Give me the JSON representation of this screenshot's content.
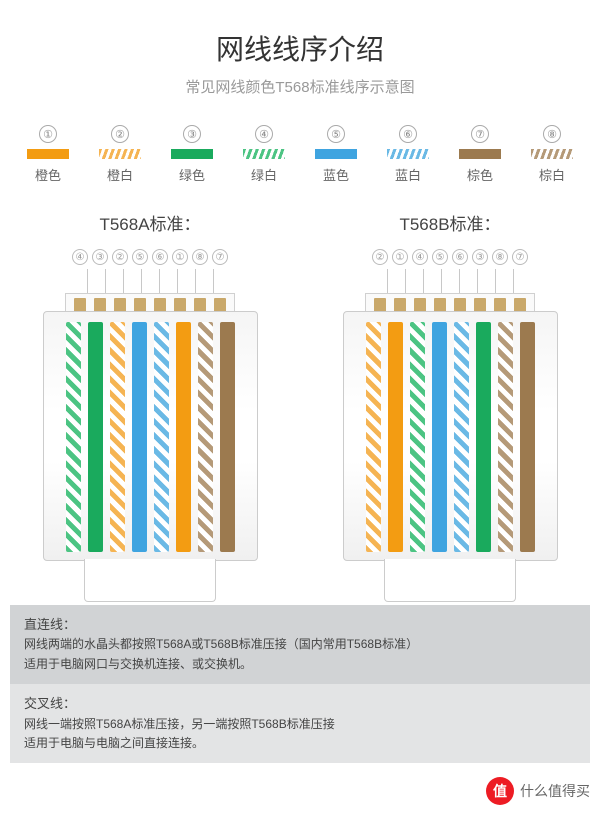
{
  "title": "网线线序介绍",
  "subtitle": "常见网线颜色T568标准线序示意图",
  "colors": {
    "orange": "#f39c12",
    "orange_white": "#f5b453",
    "green": "#1aaa5d",
    "green_white": "#4cc483",
    "blue": "#3fa4e0",
    "blue_white": "#6ab9e5",
    "brown": "#9c7a4f",
    "brown_white": "#b59a78",
    "white": "#ffffff",
    "metal": "#c9a86a",
    "text_dark": "#333333",
    "text_grey": "#999999",
    "note_bg_a": "#d1d3d5",
    "note_bg_b": "#e3e4e5"
  },
  "legend": [
    {
      "num": "①",
      "label": "橙色",
      "color": "#f39c12",
      "striped": false
    },
    {
      "num": "②",
      "label": "橙白",
      "color": "#f5b453",
      "striped": true
    },
    {
      "num": "③",
      "label": "绿色",
      "color": "#1aaa5d",
      "striped": false
    },
    {
      "num": "④",
      "label": "绿白",
      "color": "#4cc483",
      "striped": true
    },
    {
      "num": "⑤",
      "label": "蓝色",
      "color": "#3fa4e0",
      "striped": false
    },
    {
      "num": "⑥",
      "label": "蓝白",
      "color": "#6ab9e5",
      "striped": true
    },
    {
      "num": "⑦",
      "label": "棕色",
      "color": "#9c7a4f",
      "striped": false
    },
    {
      "num": "⑧",
      "label": "棕白",
      "color": "#b59a78",
      "striped": true
    }
  ],
  "standards": [
    {
      "title": "T568A标准：",
      "pins": [
        "④",
        "③",
        "②",
        "⑤",
        "⑥",
        "①",
        "⑧",
        "⑦"
      ],
      "wires": [
        {
          "c1": "#4cc483",
          "c2": "#ffffff"
        },
        {
          "c1": "#1aaa5d",
          "c2": null
        },
        {
          "c1": "#f5b453",
          "c2": "#ffffff"
        },
        {
          "c1": "#3fa4e0",
          "c2": null
        },
        {
          "c1": "#6ab9e5",
          "c2": "#ffffff"
        },
        {
          "c1": "#f39c12",
          "c2": null
        },
        {
          "c1": "#b59a78",
          "c2": "#ffffff"
        },
        {
          "c1": "#9c7a4f",
          "c2": null
        }
      ]
    },
    {
      "title": "T568B标准：",
      "pins": [
        "②",
        "①",
        "④",
        "⑤",
        "⑥",
        "③",
        "⑧",
        "⑦"
      ],
      "wires": [
        {
          "c1": "#f5b453",
          "c2": "#ffffff"
        },
        {
          "c1": "#f39c12",
          "c2": null
        },
        {
          "c1": "#4cc483",
          "c2": "#ffffff"
        },
        {
          "c1": "#3fa4e0",
          "c2": null
        },
        {
          "c1": "#6ab9e5",
          "c2": "#ffffff"
        },
        {
          "c1": "#1aaa5d",
          "c2": null
        },
        {
          "c1": "#b59a78",
          "c2": "#ffffff"
        },
        {
          "c1": "#9c7a4f",
          "c2": null
        }
      ]
    }
  ],
  "notes": [
    {
      "title": "直连线：",
      "lines": [
        "网线两端的水晶头都按照T568A或T568B标准压接（国内常用T568B标准）",
        "适用于电脑网口与交换机连接、或交换机。"
      ]
    },
    {
      "title": "交叉线：",
      "lines": [
        "网线一端按照T568A标准压接，另一端按照T568B标准压接",
        "适用于电脑与电脑之间直接连接。"
      ]
    }
  ],
  "watermark": {
    "icon": "值",
    "text": "什么值得买"
  }
}
